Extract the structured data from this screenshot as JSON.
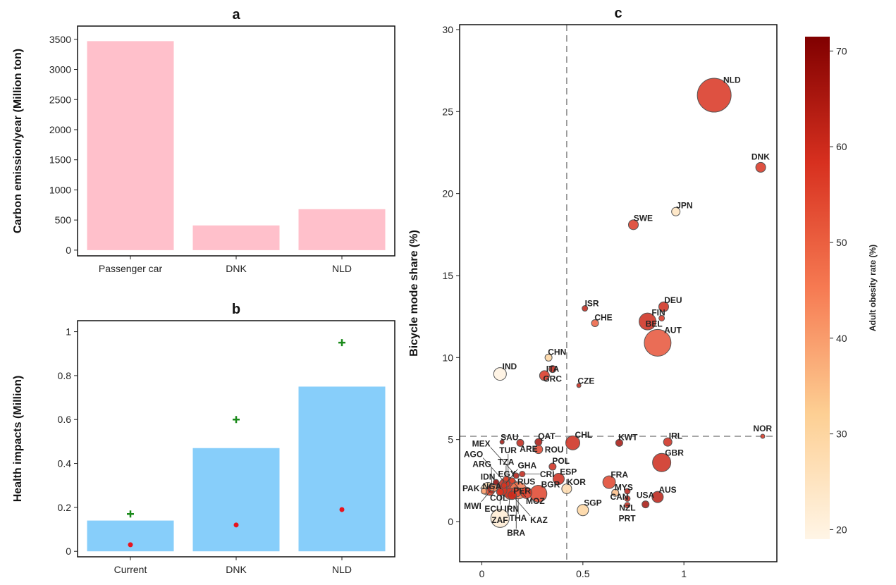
{
  "chart_data": [
    {
      "panel": "a",
      "type": "bar",
      "title": "a",
      "ylabel": "Carbon emission/year (Million ton)",
      "categories": [
        "Passenger car",
        "DNK",
        "NLD"
      ],
      "values": [
        3470,
        410,
        680
      ],
      "ylim": [
        -95,
        3720
      ],
      "yticks": [
        0,
        500,
        1000,
        1500,
        2000,
        2500,
        3000,
        3500
      ],
      "colors": {
        "bar": "#ffc0cb"
      }
    },
    {
      "panel": "b",
      "type": "bar",
      "title": "b",
      "ylabel": "Health impacts (Million)",
      "categories": [
        "Current",
        "DNK",
        "NLD"
      ],
      "values": [
        0.14,
        0.47,
        0.75
      ],
      "upper_markers": [
        0.17,
        0.6,
        0.95
      ],
      "lower_markers": [
        0.03,
        0.12,
        0.19
      ],
      "ylim": [
        -0.025,
        1.05
      ],
      "yticks": [
        0,
        0.2,
        0.4,
        0.6,
        0.8,
        1
      ],
      "colors": {
        "bar": "#87cefa",
        "upper": "#1a8a1a",
        "lower": "#e8141e"
      }
    },
    {
      "panel": "c",
      "type": "scatter",
      "title": "c",
      "xlabel": "",
      "ylabel": "Bicycle mode share (%)",
      "xlim": [
        -0.11,
        1.46
      ],
      "ylim": [
        -2.45,
        30.3
      ],
      "xticks": [
        0,
        0.5,
        1
      ],
      "xtick_labels": [
        "0",
        "0.5",
        "1"
      ],
      "yticks": [
        0,
        5,
        10,
        15,
        20,
        25,
        30
      ],
      "reference_lines": {
        "x": 0.42,
        "y": 5.2
      },
      "colorbar": {
        "label": "Adult obesity rate (%)",
        "range": [
          19,
          71.5
        ],
        "ticks": [
          20,
          30,
          40,
          50,
          60,
          70
        ],
        "colormap": [
          "#fff5e6",
          "#fdcf93",
          "#f67a52",
          "#d7301f",
          "#800000"
        ]
      },
      "points": [
        {
          "label": "NLD",
          "x": 1.15,
          "y": 26.0,
          "size": 24,
          "obesity": 58
        },
        {
          "label": "DNK",
          "x": 1.38,
          "y": 21.6,
          "size": 7,
          "obesity": 58
        },
        {
          "label": "JPN",
          "x": 0.96,
          "y": 18.9,
          "size": 6,
          "obesity": 25
        },
        {
          "label": "SWE",
          "x": 0.75,
          "y": 18.1,
          "size": 7,
          "obesity": 57
        },
        {
          "label": "ISR",
          "x": 0.51,
          "y": 13.0,
          "size": 4,
          "obesity": 62
        },
        {
          "label": "CHE",
          "x": 0.56,
          "y": 12.1,
          "size": 5,
          "obesity": 50
        },
        {
          "label": "DEU",
          "x": 0.9,
          "y": 13.1,
          "size": 7,
          "obesity": 60
        },
        {
          "label": "FIN",
          "x": 0.82,
          "y": 12.2,
          "size": 12,
          "obesity": 60
        },
        {
          "label": "BEL",
          "x": 0.89,
          "y": 12.4,
          "size": 4,
          "obesity": 58
        },
        {
          "label": "AUT",
          "x": 0.87,
          "y": 10.9,
          "size": 19,
          "obesity": 52
        },
        {
          "label": "CHN",
          "x": 0.33,
          "y": 10.0,
          "size": 5,
          "obesity": 30
        },
        {
          "label": "GRC",
          "x": 0.35,
          "y": 9.3,
          "size": 5,
          "obesity": 62
        },
        {
          "label": "ITA",
          "x": 0.31,
          "y": 8.9,
          "size": 7,
          "obesity": 58
        },
        {
          "label": "IND",
          "x": 0.09,
          "y": 9.0,
          "size": 9,
          "obesity": 20
        },
        {
          "label": "CZE",
          "x": 0.48,
          "y": 8.3,
          "size": 3,
          "obesity": 62
        },
        {
          "label": "NOR",
          "x": 1.39,
          "y": 5.2,
          "size": 3,
          "obesity": 58
        },
        {
          "label": "SAU",
          "x": 0.1,
          "y": 4.85,
          "size": 3,
          "obesity": 66
        },
        {
          "label": "ARE",
          "x": 0.19,
          "y": 4.8,
          "size": 5,
          "obesity": 62
        },
        {
          "label": "QAT",
          "x": 0.28,
          "y": 4.85,
          "size": 5,
          "obesity": 66
        },
        {
          "label": "CHL",
          "x": 0.45,
          "y": 4.8,
          "size": 10,
          "obesity": 60
        },
        {
          "label": "KWT",
          "x": 0.68,
          "y": 4.8,
          "size": 5,
          "obesity": 66
        },
        {
          "label": "IRL",
          "x": 0.92,
          "y": 4.85,
          "size": 6,
          "obesity": 60
        },
        {
          "label": "ROU",
          "x": 0.28,
          "y": 4.4,
          "size": 6,
          "obesity": 55
        },
        {
          "label": "GBR",
          "x": 0.89,
          "y": 3.6,
          "size": 13,
          "obesity": 60
        },
        {
          "label": "POL",
          "x": 0.35,
          "y": 3.35,
          "size": 5,
          "obesity": 60
        },
        {
          "label": "ESP",
          "x": 0.38,
          "y": 2.6,
          "size": 8,
          "obesity": 60
        },
        {
          "label": "KOR",
          "x": 0.42,
          "y": 2.0,
          "size": 7,
          "obesity": 28
        },
        {
          "label": "FRA",
          "x": 0.63,
          "y": 2.4,
          "size": 9,
          "obesity": 55
        },
        {
          "label": "MYS",
          "x": 0.66,
          "y": 1.75,
          "size": 5,
          "obesity": 35
        },
        {
          "label": "CAN",
          "x": 0.72,
          "y": 1.85,
          "size": 4,
          "obesity": 63
        },
        {
          "label": "AUS",
          "x": 0.87,
          "y": 1.5,
          "size": 8,
          "obesity": 63
        },
        {
          "label": "NZL",
          "x": 0.72,
          "y": 1.4,
          "size": 4,
          "obesity": 62
        },
        {
          "label": "PRT",
          "x": 0.72,
          "y": 1.0,
          "size": 4,
          "obesity": 60
        },
        {
          "label": "USA",
          "x": 0.81,
          "y": 1.05,
          "size": 5,
          "obesity": 66
        },
        {
          "label": "SGP",
          "x": 0.5,
          "y": 0.7,
          "size": 8,
          "obesity": 30
        },
        {
          "label": "BGR",
          "x": 0.28,
          "y": 1.7,
          "size": 12,
          "obesity": 55
        },
        {
          "label": "RUS",
          "x": 0.22,
          "y": 1.75,
          "size": 8,
          "obesity": 58
        },
        {
          "label": "THA",
          "x": 0.18,
          "y": 1.9,
          "size": 12,
          "obesity": 45
        },
        {
          "label": "ZAF",
          "x": 0.14,
          "y": 1.7,
          "size": 8,
          "obesity": 58
        },
        {
          "label": "KAZ",
          "x": 0.15,
          "y": 1.6,
          "size": 6,
          "obesity": 60
        },
        {
          "label": "BRA",
          "x": 0.17,
          "y": 1.8,
          "size": 7,
          "obesity": 55
        },
        {
          "label": "TUR",
          "x": 0.13,
          "y": 2.1,
          "size": 14,
          "obesity": 62
        },
        {
          "label": "PER",
          "x": 0.1,
          "y": 1.9,
          "size": 7,
          "obesity": 58
        },
        {
          "label": "COL",
          "x": 0.04,
          "y": 1.85,
          "size": 6,
          "obesity": 55
        },
        {
          "label": "NGA",
          "x": 0.01,
          "y": 1.85,
          "size": 4,
          "obesity": 40
        },
        {
          "label": "IRN",
          "x": 0.09,
          "y": 0.2,
          "size": 13,
          "obesity": 22
        },
        {
          "label": "ECU",
          "x": 0.09,
          "y": 1.8,
          "size": 5,
          "obesity": 58
        },
        {
          "label": "ARG",
          "x": 0.05,
          "y": 2.0,
          "size": 6,
          "obesity": 62
        },
        {
          "label": "IDN",
          "x": 0.03,
          "y": 2.0,
          "size": 9,
          "obesity": 28
        },
        {
          "label": "PAK",
          "x": 0.06,
          "y": 2.05,
          "size": 5,
          "obesity": 40
        },
        {
          "label": "AGO",
          "x": 0.12,
          "y": 2.3,
          "size": 5,
          "obesity": 58
        },
        {
          "label": "EGY",
          "x": 0.07,
          "y": 2.4,
          "size": 4,
          "obesity": 70
        },
        {
          "label": "TZA",
          "x": 0.12,
          "y": 2.6,
          "size": 4,
          "obesity": 55
        },
        {
          "label": "MWI",
          "x": 0.05,
          "y": 2.0,
          "size": 3,
          "obesity": 45
        },
        {
          "label": "GHA",
          "x": 0.11,
          "y": 2.2,
          "size": 4,
          "obesity": 58
        },
        {
          "label": "MEX",
          "x": 0.17,
          "y": 2.8,
          "size": 4,
          "obesity": 65
        },
        {
          "label": "CRI",
          "x": 0.2,
          "y": 2.9,
          "size": 4,
          "obesity": 62
        },
        {
          "label": "MOZ",
          "x": 0.15,
          "y": 2.5,
          "size": 4,
          "obesity": 55
        }
      ]
    }
  ]
}
